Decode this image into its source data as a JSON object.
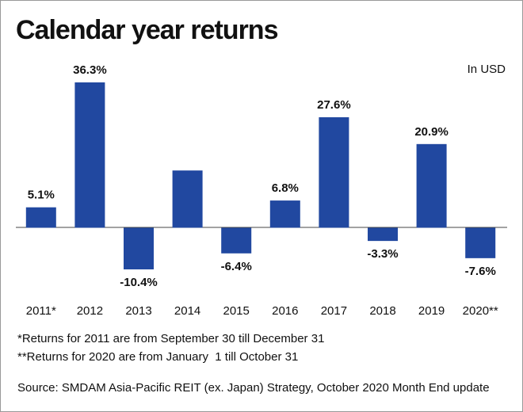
{
  "chart_data": {
    "type": "bar",
    "title": "Calendar year returns",
    "subtitle": "In USD",
    "categories": [
      "2011*",
      "2012",
      "2013",
      "2014",
      "2015",
      "2016",
      "2017",
      "2018",
      "2019",
      "2020**"
    ],
    "values": [
      5.1,
      36.3,
      -10.4,
      14.3,
      -6.4,
      6.8,
      27.6,
      -3.3,
      20.9,
      -7.6
    ],
    "value_labels": [
      "5.1%",
      "36.3%",
      "-10.4%",
      null,
      "-6.4%",
      "6.8%",
      "27.6%",
      "-3.3%",
      "20.9%",
      "-7.6%"
    ],
    "color": "#2148a0",
    "notes": [
      "*Returns for 2011 are from September 30 till December 31",
      "**Returns for 2020 are from January  1 till October 31"
    ],
    "source": "Source: SMDAM Asia-Pacific REIT (ex. Japan) Strategy, October 2020 Month End update"
  }
}
